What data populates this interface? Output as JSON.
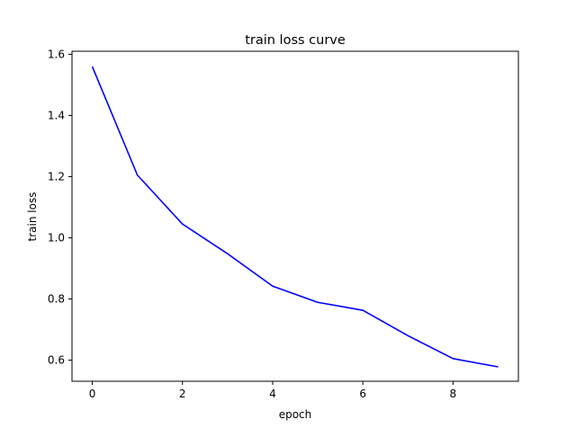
{
  "chart_data": {
    "type": "line",
    "title": "train loss curve",
    "xlabel": "epoch",
    "ylabel": "train loss",
    "xlim": [
      -0.45,
      9.45
    ],
    "ylim": [
      0.531,
      1.61
    ],
    "xticks": [
      0,
      2,
      4,
      6,
      8
    ],
    "yticks": [
      0.6,
      0.8,
      1.0,
      1.2,
      1.4,
      1.6
    ],
    "grid": false,
    "series": [
      {
        "color": "#0000ff",
        "x": [
          0,
          1,
          2,
          3,
          4,
          5,
          6,
          7,
          8,
          9
        ],
        "y": [
          1.56,
          1.205,
          1.045,
          0.948,
          0.842,
          0.789,
          0.763,
          0.68,
          0.605,
          0.578
        ]
      }
    ]
  }
}
